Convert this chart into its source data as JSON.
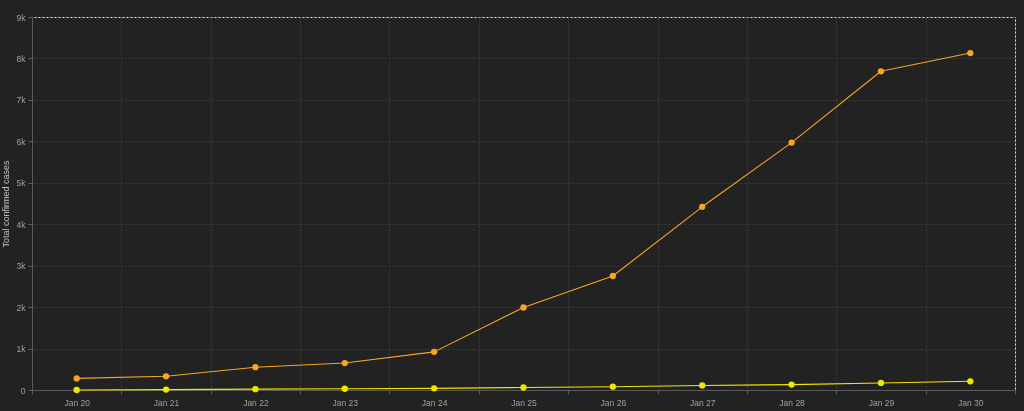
{
  "chart_data": {
    "type": "line",
    "ylabel": "Total confirmed cases",
    "categories": [
      "Jan 20",
      "Jan 21",
      "Jan 22",
      "Jan 23",
      "Jan 24",
      "Jan 25",
      "Jan 26",
      "Jan 27",
      "Jan 28",
      "Jan 29",
      "Jan 30"
    ],
    "series": [
      {
        "color": "#f5a623",
        "values": [
          280,
          330,
          550,
          650,
          920,
          1990,
          2750,
          4420,
          5970,
          7690,
          8130
        ]
      },
      {
        "color": "#f2e600",
        "values": [
          0,
          10,
          20,
          30,
          40,
          60,
          80,
          110,
          130,
          170,
          210
        ]
      }
    ],
    "ylim": [
      0,
      9000
    ],
    "yticks": [
      0,
      {
        "value": 1000,
        "label": "1k"
      },
      {
        "value": 2000,
        "label": "2k"
      },
      {
        "value": 3000,
        "label": "3k"
      },
      {
        "value": 4000,
        "label": "4k"
      },
      {
        "value": 5000,
        "label": "5k"
      },
      {
        "value": 6000,
        "label": "6k"
      },
      {
        "value": 7000,
        "label": "7k"
      },
      {
        "value": 8000,
        "label": "8k"
      },
      {
        "value": 9000,
        "label": "9k"
      }
    ],
    "grid": true,
    "marker": "circle",
    "line_style": "solid"
  }
}
